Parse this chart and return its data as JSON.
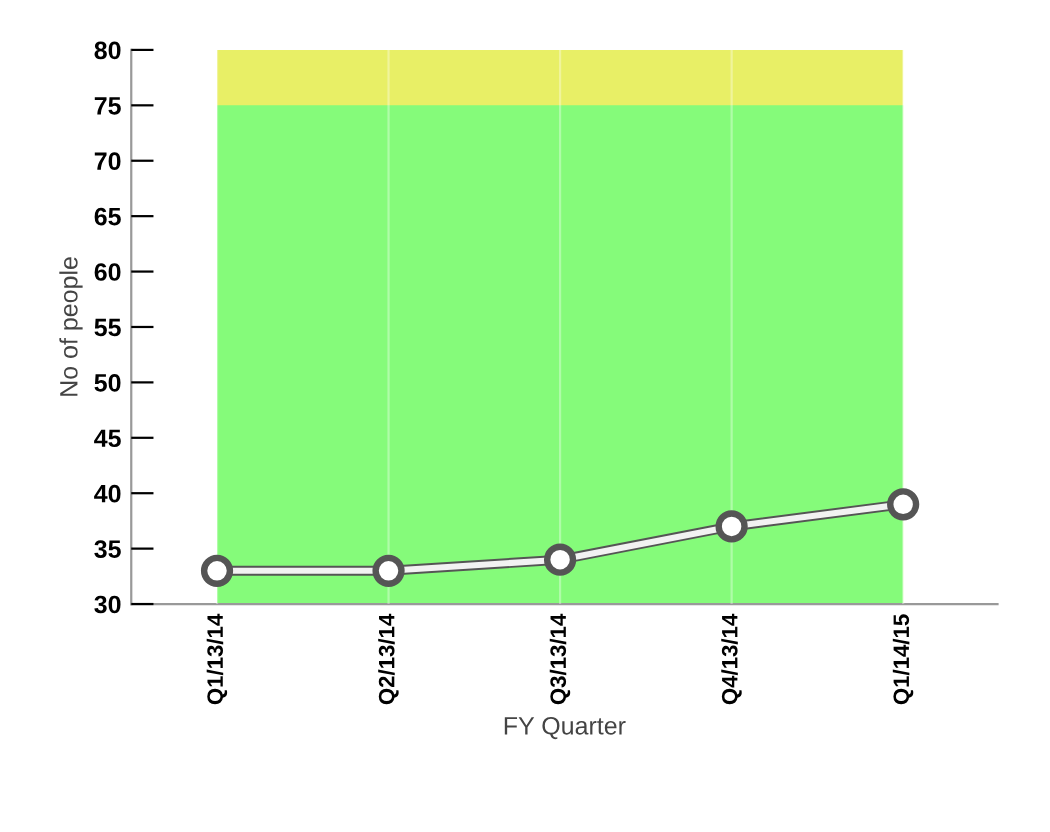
{
  "chart_data": {
    "type": "area",
    "xlabel": "FY Quarter",
    "ylabel": "No of people",
    "categories": [
      "Q1/13/14",
      "Q2/13/14",
      "Q3/13/14",
      "Q4/13/14",
      "Q1/14/15"
    ],
    "series": [
      {
        "color": "#e8ef66",
        "values": [
          80,
          80,
          80,
          80,
          80
        ],
        "marker": "none"
      },
      {
        "color": "#85fb7a",
        "values": [
          75,
          75,
          75,
          75,
          75
        ],
        "marker": "none"
      },
      {
        "type": "line",
        "color": "#f2f2f2",
        "values": [
          33,
          33,
          34,
          37,
          39
        ],
        "marker": "circle"
      }
    ],
    "ylim": [
      30,
      80
    ],
    "yticks": [
      30,
      35,
      40,
      45,
      50,
      55,
      60,
      65,
      70,
      75,
      80
    ],
    "grid": "x",
    "line_style": "solid",
    "legend": false
  }
}
